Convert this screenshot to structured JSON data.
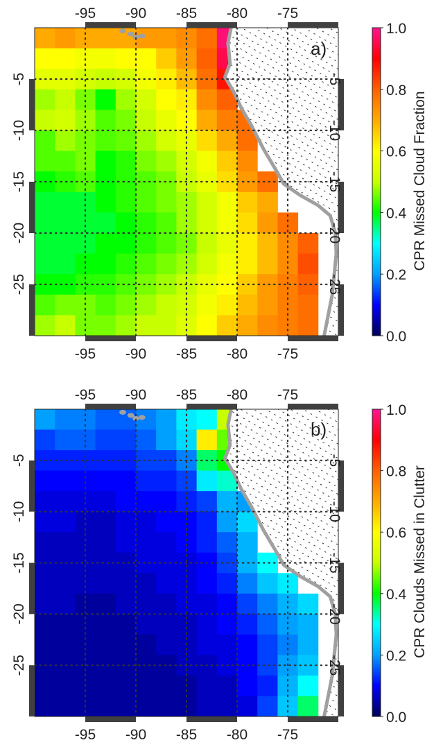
{
  "chart_data": [
    {
      "type": "heatmap",
      "panel_label": "a)",
      "colorbar_label": "CPR Missed Cloud Fraction",
      "colorbar_ticks": [
        "0.0",
        "0.2",
        "0.4",
        "0.6",
        "0.8",
        "1.0"
      ],
      "colorbar_range": [
        0,
        1
      ],
      "lon_range": [
        -100,
        -70
      ],
      "lat_range": [
        -30,
        0
      ],
      "lon_ticks": [
        "-95",
        "-90",
        "-85",
        "-80",
        "-75"
      ],
      "lon_tick_values": [
        -95,
        -90,
        -85,
        -80,
        -75
      ],
      "lat_ticks": [
        "-5",
        "-10",
        "-15",
        "-20",
        "-25"
      ],
      "lat_tick_values": [
        -5,
        -10,
        -15,
        -20,
        -25
      ],
      "grid": true,
      "cell_size_deg": 2,
      "values": [
        [
          0.7,
          0.72,
          0.7,
          0.7,
          0.7,
          0.72,
          0.72,
          0.74,
          0.78,
          0.98,
          null,
          null,
          null,
          null,
          null
        ],
        [
          0.6,
          0.6,
          0.58,
          0.58,
          0.6,
          0.6,
          0.66,
          0.72,
          0.8,
          0.95,
          null,
          null,
          null,
          null,
          null
        ],
        [
          0.55,
          0.55,
          0.52,
          0.5,
          0.52,
          0.58,
          0.62,
          0.68,
          0.78,
          0.88,
          null,
          null,
          null,
          null,
          null
        ],
        [
          0.48,
          0.5,
          0.46,
          0.4,
          0.48,
          0.52,
          0.6,
          0.62,
          0.74,
          0.8,
          null,
          null,
          null,
          null,
          null
        ],
        [
          0.5,
          0.52,
          0.48,
          0.44,
          0.46,
          0.5,
          0.56,
          0.6,
          0.7,
          0.76,
          0.78,
          null,
          null,
          null,
          null
        ],
        [
          0.44,
          0.48,
          0.46,
          0.44,
          0.45,
          0.48,
          0.52,
          0.56,
          0.64,
          0.7,
          0.78,
          null,
          null,
          null,
          null
        ],
        [
          0.44,
          0.44,
          0.46,
          0.4,
          0.42,
          0.46,
          0.48,
          0.52,
          0.58,
          0.66,
          0.74,
          null,
          null,
          null,
          null
        ],
        [
          0.4,
          0.42,
          0.44,
          0.4,
          0.42,
          0.44,
          0.46,
          0.5,
          0.56,
          0.64,
          0.72,
          0.78,
          null,
          null,
          null
        ],
        [
          0.38,
          0.38,
          0.38,
          0.4,
          0.42,
          0.44,
          0.46,
          0.48,
          0.52,
          0.58,
          0.66,
          0.7,
          null,
          null,
          null
        ],
        [
          0.38,
          0.38,
          0.38,
          0.38,
          0.4,
          0.42,
          0.44,
          0.48,
          0.52,
          0.58,
          0.64,
          0.72,
          0.78,
          null,
          null
        ],
        [
          0.38,
          0.38,
          0.38,
          0.4,
          0.4,
          0.42,
          0.44,
          0.46,
          0.5,
          0.56,
          0.62,
          0.68,
          0.74,
          0.8,
          null
        ],
        [
          0.38,
          0.38,
          0.4,
          0.4,
          0.42,
          0.44,
          0.46,
          0.48,
          0.52,
          0.58,
          0.62,
          0.68,
          0.74,
          0.82,
          null
        ],
        [
          0.4,
          0.4,
          0.42,
          0.42,
          0.44,
          0.46,
          0.48,
          0.5,
          0.56,
          0.6,
          0.66,
          0.72,
          0.76,
          0.8,
          null
        ],
        [
          0.44,
          0.46,
          0.46,
          0.44,
          0.46,
          0.48,
          0.5,
          0.52,
          0.58,
          0.62,
          0.68,
          0.72,
          0.76,
          0.78,
          null
        ],
        [
          0.48,
          0.5,
          0.46,
          0.46,
          0.48,
          0.5,
          0.5,
          0.54,
          0.6,
          0.66,
          0.7,
          0.74,
          0.76,
          0.78,
          null
        ]
      ]
    },
    {
      "type": "heatmap",
      "panel_label": "b)",
      "colorbar_label": "CPR Clouds Missed in Clutter",
      "colorbar_ticks": [
        "0.0",
        "0.2",
        "0.4",
        "0.6",
        "0.8",
        "1.0"
      ],
      "colorbar_range": [
        0,
        1
      ],
      "lon_range": [
        -100,
        -70
      ],
      "lat_range": [
        -30,
        0
      ],
      "lon_ticks": [
        "-95",
        "-90",
        "-85",
        "-80",
        "-75"
      ],
      "lon_tick_values": [
        -95,
        -90,
        -85,
        -80,
        -75
      ],
      "lat_ticks": [
        "-5",
        "-10",
        "-15",
        "-20",
        "-25"
      ],
      "lat_tick_values": [
        -5,
        -10,
        -15,
        -20,
        -25
      ],
      "grid": true,
      "cell_size_deg": 2,
      "values": [
        [
          0.2,
          0.18,
          0.18,
          0.16,
          0.16,
          0.18,
          0.2,
          0.28,
          0.3,
          0.5,
          null,
          null,
          null,
          null,
          null
        ],
        [
          0.14,
          0.16,
          0.16,
          0.14,
          0.14,
          0.16,
          0.2,
          0.26,
          0.62,
          0.45,
          null,
          null,
          null,
          null,
          null
        ],
        [
          0.12,
          0.12,
          0.12,
          0.12,
          0.12,
          0.14,
          0.14,
          0.18,
          0.36,
          0.4,
          null,
          null,
          null,
          null,
          null
        ],
        [
          0.1,
          0.1,
          0.1,
          0.1,
          0.1,
          0.12,
          0.12,
          0.14,
          0.28,
          0.32,
          null,
          null,
          null,
          null,
          null
        ],
        [
          0.08,
          0.08,
          0.08,
          0.08,
          0.1,
          0.1,
          0.1,
          0.12,
          0.14,
          0.22,
          0.2,
          null,
          null,
          null,
          null
        ],
        [
          0.08,
          0.08,
          0.06,
          0.06,
          0.08,
          0.08,
          0.1,
          0.1,
          0.12,
          0.2,
          0.26,
          null,
          null,
          null,
          null
        ],
        [
          0.06,
          0.06,
          0.06,
          0.06,
          0.08,
          0.08,
          0.08,
          0.1,
          0.12,
          0.16,
          0.22,
          null,
          null,
          null,
          null
        ],
        [
          0.06,
          0.06,
          0.06,
          0.06,
          0.06,
          0.08,
          0.08,
          0.08,
          0.1,
          0.14,
          0.22,
          0.3,
          null,
          null,
          null
        ],
        [
          0.06,
          0.06,
          0.06,
          0.06,
          0.06,
          0.06,
          0.08,
          0.08,
          0.1,
          0.12,
          0.18,
          0.24,
          0.28,
          null,
          null
        ],
        [
          0.06,
          0.06,
          0.04,
          0.04,
          0.06,
          0.06,
          0.06,
          0.08,
          0.08,
          0.1,
          0.14,
          0.18,
          0.22,
          0.26,
          null
        ],
        [
          0.04,
          0.04,
          0.04,
          0.04,
          0.04,
          0.06,
          0.06,
          0.06,
          0.08,
          0.1,
          0.12,
          0.16,
          0.2,
          0.22,
          null
        ],
        [
          0.04,
          0.04,
          0.04,
          0.04,
          0.04,
          0.04,
          0.06,
          0.06,
          0.08,
          0.08,
          0.1,
          0.14,
          0.18,
          0.22,
          null
        ],
        [
          0.04,
          0.04,
          0.04,
          0.04,
          0.04,
          0.04,
          0.04,
          0.06,
          0.06,
          0.08,
          0.1,
          0.14,
          0.2,
          0.24,
          null
        ],
        [
          0.04,
          0.04,
          0.04,
          0.04,
          0.04,
          0.04,
          0.04,
          0.04,
          0.06,
          0.06,
          0.1,
          0.12,
          0.22,
          0.3,
          null
        ],
        [
          0.04,
          0.04,
          0.04,
          0.04,
          0.04,
          0.04,
          0.04,
          0.04,
          0.06,
          0.06,
          0.08,
          0.14,
          0.24,
          0.36,
          null
        ]
      ]
    }
  ],
  "map": {
    "coastline": [
      [
        -80.6,
        0
      ],
      [
        -80.9,
        -1.5
      ],
      [
        -80.7,
        -3.5
      ],
      [
        -81.2,
        -4.8
      ],
      [
        -80.3,
        -6.3
      ],
      [
        -79.6,
        -7.8
      ],
      [
        -78.6,
        -9.5
      ],
      [
        -77.4,
        -11.8
      ],
      [
        -76.2,
        -13.8
      ],
      [
        -75.4,
        -15.2
      ],
      [
        -73.8,
        -16.3
      ],
      [
        -72.0,
        -17.3
      ],
      [
        -70.8,
        -18.3
      ],
      [
        -70.3,
        -20.0
      ],
      [
        -70.2,
        -22.0
      ],
      [
        -70.4,
        -24.0
      ],
      [
        -70.6,
        -26.0
      ],
      [
        -71.0,
        -28.0
      ],
      [
        -71.4,
        -30.0
      ]
    ],
    "islands": [
      [
        -90.5,
        -0.6
      ],
      [
        -91.3,
        -0.3
      ],
      [
        -90.0,
        -0.9
      ],
      [
        -89.4,
        -0.8
      ]
    ],
    "land_fill_color": "#ffffff",
    "coast_color": "#a0a0a0",
    "colors": {
      "grid": "#333333",
      "colorbar_stops": [
        "#00005a",
        "#0000ff",
        "#00a0ff",
        "#00ffff",
        "#00ff00",
        "#c8ff00",
        "#ffff00",
        "#ffaa00",
        "#ff6000",
        "#ff0000",
        "#ff1493"
      ]
    }
  }
}
